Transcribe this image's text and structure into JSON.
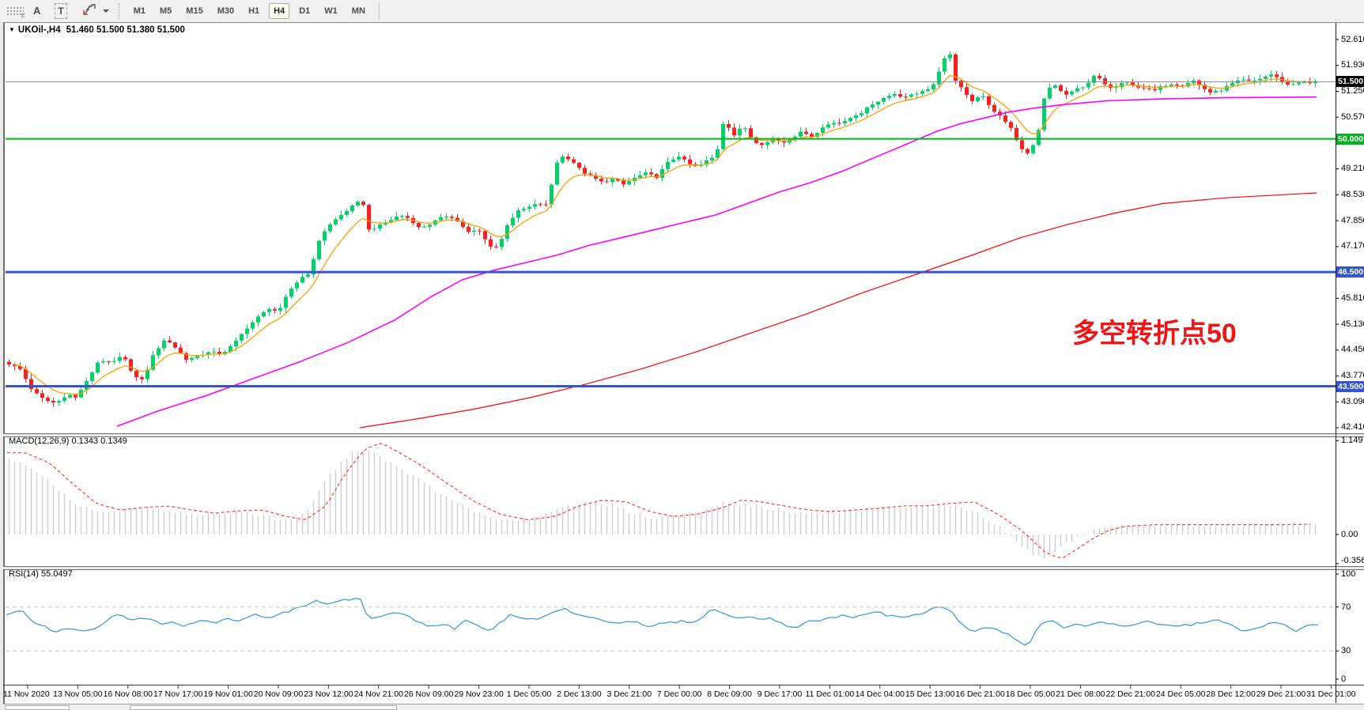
{
  "toolbar": {
    "tools": [
      {
        "id": "toolbar-grip",
        "label": "F"
      },
      {
        "id": "text-label-tool",
        "label": "A"
      },
      {
        "id": "text-box-tool",
        "label": "T"
      }
    ],
    "timeframes": [
      "M1",
      "M5",
      "M15",
      "M30",
      "H1",
      "H4",
      "D1",
      "W1",
      "MN"
    ],
    "active_timeframe": "H4"
  },
  "chart_data": {
    "type": "candlestick",
    "title_text": "UKOil-,H4",
    "quote_line": "51.460 51.500 51.380 51.500",
    "colors": {
      "up": "#00d26a",
      "down": "#ff1e1e",
      "ma_fast": "#ffa000",
      "ma_mid": "#ff00ff",
      "ma_slow": "#ff0000",
      "bid_line": "#8a8a8a",
      "bid_box": "#000000",
      "level_green": "#00b41e",
      "level_blue": "#3355d0",
      "macd_hist": "#cdcdcd",
      "macd_signal": "#ff3b3b",
      "rsi_line": "#3e9cdb",
      "annotation": "#f21414"
    },
    "y_ticks": [
      "52.610",
      "51.930",
      "51.250",
      "50.570",
      "49.890",
      "49.210",
      "48.530",
      "47.850",
      "47.170",
      "45.810",
      "45.130",
      "44.450",
      "43.770",
      "43.090",
      "42.410"
    ],
    "h_lines": [
      {
        "label": "51.500",
        "price": 51.5,
        "style": "bid"
      },
      {
        "label": "50.000",
        "price": 50.0,
        "style": "green"
      },
      {
        "label": "46.500",
        "price": 46.5,
        "style": "blue"
      },
      {
        "label": "43.500",
        "price": 43.5,
        "style": "blue"
      }
    ],
    "x_labels": [
      "11 Nov 2020",
      "13 Nov 05:00",
      "16 Nov 08:00",
      "17 Nov 17:00",
      "19 Nov 01:00",
      "20 Nov 09:00",
      "23 Nov 12:00",
      "24 Nov 21:00",
      "26 Nov 09:00",
      "29 Nov 23:00",
      "1 Dec 05:00",
      "2 Dec 13:00",
      "3 Dec 21:00",
      "7 Dec 00:00",
      "8 Dec 09:00",
      "9 Dec 17:00",
      "11 Dec 01:00",
      "14 Dec 04:00",
      "15 Dec 13:00",
      "16 Dec 21:00",
      "18 Dec 05:00",
      "21 Dec 08:00",
      "22 Dec 21:00",
      "24 Dec 05:00",
      "28 Dec 12:00",
      "29 Dec 21:00",
      "31 Dec 01:00"
    ],
    "annotation": {
      "text": "多空转折点50"
    },
    "price_path": [
      [
        10,
        44.1
      ],
      [
        25,
        43.95
      ],
      [
        40,
        43.4
      ],
      [
        55,
        43.15
      ],
      [
        70,
        43.05
      ],
      [
        85,
        43.3
      ],
      [
        95,
        43.2
      ],
      [
        110,
        43.65
      ],
      [
        125,
        44.2
      ],
      [
        140,
        44.1
      ],
      [
        155,
        44.3
      ],
      [
        170,
        43.75
      ],
      [
        180,
        43.65
      ],
      [
        195,
        44.4
      ],
      [
        210,
        44.75
      ],
      [
        220,
        44.55
      ],
      [
        235,
        44.2
      ],
      [
        250,
        44.3
      ],
      [
        265,
        44.4
      ],
      [
        280,
        44.35
      ],
      [
        295,
        44.6
      ],
      [
        310,
        45.0
      ],
      [
        325,
        45.3
      ],
      [
        340,
        45.55
      ],
      [
        352,
        45.45
      ],
      [
        365,
        46.0
      ],
      [
        380,
        46.35
      ],
      [
        392,
        46.5
      ],
      [
        402,
        47.3
      ],
      [
        412,
        47.65
      ],
      [
        425,
        47.9
      ],
      [
        437,
        48.1
      ],
      [
        450,
        48.3
      ],
      [
        458,
        48.4
      ],
      [
        465,
        47.6
      ],
      [
        478,
        47.7
      ],
      [
        492,
        47.85
      ],
      [
        505,
        48.0
      ],
      [
        518,
        47.9
      ],
      [
        530,
        47.65
      ],
      [
        542,
        47.75
      ],
      [
        555,
        47.9
      ],
      [
        568,
        48.0
      ],
      [
        580,
        47.8
      ],
      [
        592,
        47.55
      ],
      [
        605,
        47.6
      ],
      [
        618,
        47.2
      ],
      [
        630,
        47.15
      ],
      [
        642,
        47.8
      ],
      [
        655,
        48.1
      ],
      [
        668,
        48.2
      ],
      [
        680,
        48.3
      ],
      [
        692,
        48.25
      ],
      [
        702,
        49.35
      ],
      [
        712,
        49.55
      ],
      [
        722,
        49.45
      ],
      [
        735,
        49.15
      ],
      [
        748,
        49.0
      ],
      [
        762,
        48.85
      ],
      [
        775,
        48.95
      ],
      [
        788,
        48.8
      ],
      [
        800,
        48.95
      ],
      [
        815,
        49.1
      ],
      [
        830,
        49.0
      ],
      [
        845,
        49.4
      ],
      [
        858,
        49.55
      ],
      [
        870,
        49.35
      ],
      [
        882,
        49.25
      ],
      [
        895,
        49.45
      ],
      [
        905,
        49.55
      ],
      [
        915,
        50.5
      ],
      [
        928,
        50.1
      ],
      [
        940,
        50.35
      ],
      [
        952,
        49.95
      ],
      [
        965,
        49.85
      ],
      [
        978,
        50.0
      ],
      [
        990,
        49.9
      ],
      [
        1002,
        50.05
      ],
      [
        1015,
        50.2
      ],
      [
        1028,
        50.05
      ],
      [
        1040,
        50.3
      ],
      [
        1052,
        50.45
      ],
      [
        1065,
        50.4
      ],
      [
        1078,
        50.6
      ],
      [
        1090,
        50.7
      ],
      [
        1102,
        50.9
      ],
      [
        1115,
        51.05
      ],
      [
        1128,
        51.2
      ],
      [
        1140,
        51.1
      ],
      [
        1152,
        51.15
      ],
      [
        1165,
        51.25
      ],
      [
        1178,
        51.3
      ],
      [
        1190,
        51.95
      ],
      [
        1200,
        52.3
      ],
      [
        1208,
        51.55
      ],
      [
        1218,
        51.3
      ],
      [
        1228,
        50.95
      ],
      [
        1240,
        51.2
      ],
      [
        1252,
        50.8
      ],
      [
        1265,
        50.6
      ],
      [
        1278,
        50.3
      ],
      [
        1290,
        49.75
      ],
      [
        1300,
        49.6
      ],
      [
        1312,
        50.1
      ],
      [
        1322,
        51.3
      ],
      [
        1335,
        51.4
      ],
      [
        1348,
        51.15
      ],
      [
        1360,
        51.3
      ],
      [
        1372,
        51.35
      ],
      [
        1385,
        51.7
      ],
      [
        1395,
        51.45
      ],
      [
        1408,
        51.3
      ],
      [
        1420,
        51.5
      ],
      [
        1432,
        51.4
      ],
      [
        1445,
        51.35
      ],
      [
        1458,
        51.25
      ],
      [
        1470,
        51.4
      ],
      [
        1482,
        51.45
      ],
      [
        1495,
        51.4
      ],
      [
        1508,
        51.55
      ],
      [
        1520,
        51.35
      ],
      [
        1532,
        51.2
      ],
      [
        1545,
        51.3
      ],
      [
        1558,
        51.45
      ],
      [
        1570,
        51.55
      ],
      [
        1582,
        51.5
      ],
      [
        1595,
        51.6
      ],
      [
        1608,
        51.7
      ],
      [
        1618,
        51.55
      ],
      [
        1630,
        51.4
      ],
      [
        1642,
        51.5
      ],
      [
        1654,
        51.45
      ],
      [
        1663,
        51.5
      ]
    ],
    "ma_mid_path": [
      [
        148,
        42.45
      ],
      [
        200,
        42.85
      ],
      [
        260,
        43.25
      ],
      [
        320,
        43.7
      ],
      [
        380,
        44.15
      ],
      [
        440,
        44.65
      ],
      [
        500,
        45.25
      ],
      [
        545,
        45.85
      ],
      [
        585,
        46.3
      ],
      [
        625,
        46.55
      ],
      [
        665,
        46.75
      ],
      [
        705,
        46.95
      ],
      [
        745,
        47.2
      ],
      [
        785,
        47.4
      ],
      [
        825,
        47.6
      ],
      [
        865,
        47.8
      ],
      [
        905,
        48.0
      ],
      [
        945,
        48.3
      ],
      [
        985,
        48.6
      ],
      [
        1025,
        48.85
      ],
      [
        1065,
        49.15
      ],
      [
        1105,
        49.5
      ],
      [
        1145,
        49.85
      ],
      [
        1185,
        50.2
      ],
      [
        1215,
        50.4
      ],
      [
        1245,
        50.55
      ],
      [
        1275,
        50.7
      ],
      [
        1305,
        50.8
      ],
      [
        1345,
        50.9
      ],
      [
        1400,
        51.0
      ],
      [
        1470,
        51.05
      ],
      [
        1550,
        51.08
      ],
      [
        1665,
        51.1
      ]
    ],
    "ma_slow_path": [
      [
        455,
        42.41
      ],
      [
        530,
        42.65
      ],
      [
        600,
        42.9
      ],
      [
        670,
        43.2
      ],
      [
        740,
        43.55
      ],
      [
        810,
        43.95
      ],
      [
        880,
        44.4
      ],
      [
        950,
        44.9
      ],
      [
        1020,
        45.4
      ],
      [
        1090,
        45.95
      ],
      [
        1160,
        46.45
      ],
      [
        1230,
        46.95
      ],
      [
        1290,
        47.4
      ],
      [
        1350,
        47.75
      ],
      [
        1410,
        48.05
      ],
      [
        1470,
        48.3
      ],
      [
        1550,
        48.45
      ],
      [
        1665,
        48.58
      ]
    ],
    "macd": {
      "label": "MACD(12,26,9) 0.1343 0.1349",
      "ticks": [
        {
          "label": "1.149",
          "v": 1.149
        },
        {
          "label": "0.00",
          "v": 0
        },
        {
          "label": "-0.3563",
          "v": -0.3563
        }
      ],
      "path": [
        [
          10,
          1.0
        ],
        [
          40,
          0.88
        ],
        [
          70,
          0.62
        ],
        [
          100,
          0.38
        ],
        [
          130,
          0.3
        ],
        [
          160,
          0.33
        ],
        [
          190,
          0.35
        ],
        [
          220,
          0.3
        ],
        [
          250,
          0.26
        ],
        [
          280,
          0.29
        ],
        [
          310,
          0.3
        ],
        [
          340,
          0.22
        ],
        [
          365,
          0.18
        ],
        [
          390,
          0.35
        ],
        [
          415,
          0.75
        ],
        [
          440,
          1.05
        ],
        [
          460,
          1.12
        ],
        [
          480,
          1.02
        ],
        [
          510,
          0.85
        ],
        [
          540,
          0.65
        ],
        [
          575,
          0.42
        ],
        [
          610,
          0.25
        ],
        [
          645,
          0.18
        ],
        [
          680,
          0.22
        ],
        [
          710,
          0.35
        ],
        [
          740,
          0.42
        ],
        [
          770,
          0.4
        ],
        [
          800,
          0.28
        ],
        [
          830,
          0.22
        ],
        [
          860,
          0.25
        ],
        [
          890,
          0.32
        ],
        [
          915,
          0.42
        ],
        [
          940,
          0.4
        ],
        [
          970,
          0.35
        ],
        [
          1000,
          0.3
        ],
        [
          1030,
          0.28
        ],
        [
          1060,
          0.3
        ],
        [
          1090,
          0.32
        ],
        [
          1120,
          0.35
        ],
        [
          1150,
          0.35
        ],
        [
          1180,
          0.38
        ],
        [
          1210,
          0.4
        ],
        [
          1240,
          0.25
        ],
        [
          1270,
          0.05
        ],
        [
          1300,
          -0.22
        ],
        [
          1320,
          -0.3
        ],
        [
          1340,
          -0.18
        ],
        [
          1360,
          -0.05
        ],
        [
          1380,
          0.05
        ],
        [
          1400,
          0.1
        ],
        [
          1440,
          0.12
        ],
        [
          1480,
          0.12
        ],
        [
          1540,
          0.12
        ],
        [
          1600,
          0.12
        ],
        [
          1663,
          0.13
        ]
      ]
    },
    "rsi": {
      "label": "RSI(14) 55.0497",
      "ticks": [
        {
          "label": "100",
          "v": 100
        },
        {
          "label": "70",
          "v": 70
        },
        {
          "label": "30",
          "v": 30
        },
        {
          "label": "0",
          "v": 0
        }
      ],
      "levels": [
        70,
        30
      ],
      "path": [
        [
          8,
          62
        ],
        [
          25,
          68
        ],
        [
          45,
          55
        ],
        [
          70,
          48
        ],
        [
          90,
          50
        ],
        [
          110,
          47
        ],
        [
          130,
          55
        ],
        [
          150,
          65
        ],
        [
          165,
          58
        ],
        [
          185,
          60
        ],
        [
          205,
          55
        ],
        [
          220,
          57
        ],
        [
          235,
          52
        ],
        [
          250,
          58
        ],
        [
          270,
          55
        ],
        [
          285,
          60
        ],
        [
          300,
          57
        ],
        [
          320,
          63
        ],
        [
          340,
          60
        ],
        [
          360,
          65
        ],
        [
          380,
          70
        ],
        [
          400,
          75
        ],
        [
          420,
          73
        ],
        [
          440,
          77
        ],
        [
          455,
          78
        ],
        [
          465,
          60
        ],
        [
          480,
          62
        ],
        [
          500,
          65
        ],
        [
          520,
          60
        ],
        [
          540,
          52
        ],
        [
          560,
          55
        ],
        [
          575,
          50
        ],
        [
          590,
          58
        ],
        [
          605,
          52
        ],
        [
          618,
          48
        ],
        [
          632,
          55
        ],
        [
          645,
          63
        ],
        [
          660,
          60
        ],
        [
          680,
          58
        ],
        [
          700,
          65
        ],
        [
          715,
          68
        ],
        [
          730,
          63
        ],
        [
          745,
          60
        ],
        [
          760,
          58
        ],
        [
          780,
          55
        ],
        [
          800,
          57
        ],
        [
          820,
          53
        ],
        [
          840,
          55
        ],
        [
          860,
          57
        ],
        [
          880,
          55
        ],
        [
          900,
          68
        ],
        [
          915,
          65
        ],
        [
          930,
          60
        ],
        [
          945,
          62
        ],
        [
          960,
          58
        ],
        [
          975,
          60
        ],
        [
          990,
          55
        ],
        [
          1005,
          50
        ],
        [
          1020,
          58
        ],
        [
          1035,
          56
        ],
        [
          1050,
          60
        ],
        [
          1065,
          62
        ],
        [
          1080,
          60
        ],
        [
          1095,
          63
        ],
        [
          1110,
          65
        ],
        [
          1125,
          62
        ],
        [
          1140,
          60
        ],
        [
          1155,
          63
        ],
        [
          1170,
          65
        ],
        [
          1185,
          70
        ],
        [
          1200,
          68
        ],
        [
          1215,
          55
        ],
        [
          1230,
          48
        ],
        [
          1245,
          52
        ],
        [
          1260,
          50
        ],
        [
          1275,
          45
        ],
        [
          1290,
          38
        ],
        [
          1300,
          35
        ],
        [
          1315,
          55
        ],
        [
          1330,
          58
        ],
        [
          1345,
          52
        ],
        [
          1360,
          55
        ],
        [
          1375,
          53
        ],
        [
          1390,
          57
        ],
        [
          1405,
          55
        ],
        [
          1420,
          52
        ],
        [
          1435,
          55
        ],
        [
          1450,
          57
        ],
        [
          1465,
          54
        ],
        [
          1480,
          53
        ],
        [
          1495,
          54
        ],
        [
          1510,
          54
        ],
        [
          1525,
          57
        ],
        [
          1545,
          58
        ],
        [
          1565,
          50
        ],
        [
          1580,
          48
        ],
        [
          1600,
          54
        ],
        [
          1620,
          56
        ],
        [
          1638,
          47
        ],
        [
          1650,
          52
        ],
        [
          1668,
          54
        ]
      ]
    }
  }
}
